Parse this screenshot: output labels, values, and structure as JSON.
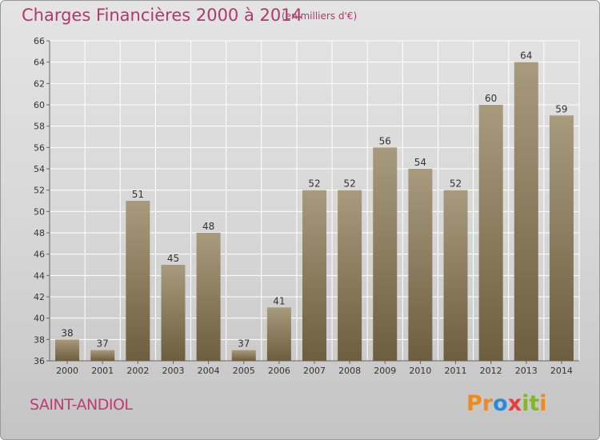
{
  "header": {
    "title": "Charges Financières 2000 à 2014",
    "subtitle": "(en milliers d'€)"
  },
  "footer": {
    "commune": "SAINT-ANDIOL",
    "logo_letters": [
      "P",
      "r",
      "o",
      "x",
      "i",
      "t",
      "i"
    ],
    "logo_colors": [
      "#f08a1c",
      "#f08a1c",
      "#2a8cd6",
      "#e33f3f",
      "#84b82b",
      "#84b82b",
      "#f08a1c"
    ]
  },
  "colors": {
    "bar_top": "#a89a7c",
    "bar_bottom": "#6e5e40",
    "title": "#b03a66"
  },
  "chart_data": {
    "type": "bar",
    "categories": [
      "2000",
      "2001",
      "2002",
      "2003",
      "2004",
      "2005",
      "2006",
      "2007",
      "2008",
      "2009",
      "2010",
      "2011",
      "2012",
      "2013",
      "2014"
    ],
    "values": [
      38,
      37,
      51,
      45,
      48,
      37,
      41,
      52,
      52,
      56,
      54,
      52,
      60,
      64,
      59
    ],
    "ylim": [
      36,
      66
    ],
    "yticks": [
      36,
      38,
      40,
      42,
      44,
      46,
      48,
      50,
      52,
      54,
      56,
      58,
      60,
      62,
      64,
      66
    ],
    "grid": true
  }
}
